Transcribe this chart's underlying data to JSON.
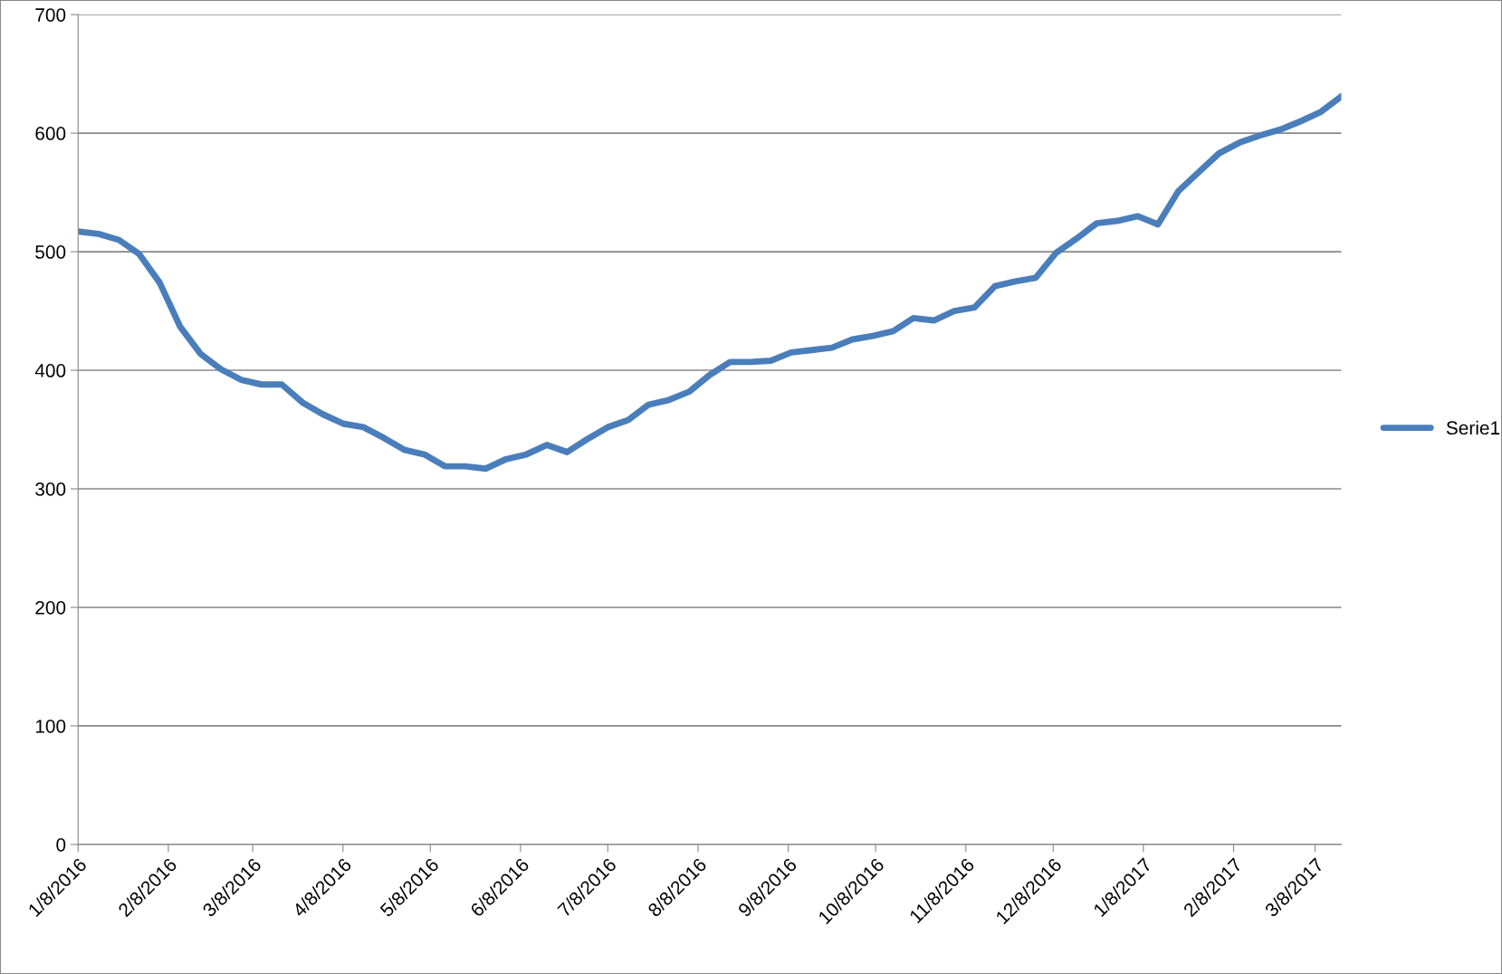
{
  "chart_data": {
    "type": "line",
    "x": [
      "2016-01-08",
      "2016-01-15",
      "2016-01-22",
      "2016-01-29",
      "2016-02-05",
      "2016-02-12",
      "2016-02-19",
      "2016-02-26",
      "2016-03-04",
      "2016-03-11",
      "2016-03-18",
      "2016-03-25",
      "2016-04-01",
      "2016-04-08",
      "2016-04-15",
      "2016-04-22",
      "2016-04-29",
      "2016-05-06",
      "2016-05-13",
      "2016-05-20",
      "2016-05-27",
      "2016-06-03",
      "2016-06-10",
      "2016-06-17",
      "2016-06-24",
      "2016-07-01",
      "2016-07-08",
      "2016-07-15",
      "2016-07-22",
      "2016-07-29",
      "2016-08-05",
      "2016-08-12",
      "2016-08-19",
      "2016-08-26",
      "2016-09-02",
      "2016-09-09",
      "2016-09-16",
      "2016-09-23",
      "2016-09-30",
      "2016-10-07",
      "2016-10-14",
      "2016-10-21",
      "2016-10-28",
      "2016-11-04",
      "2016-11-11",
      "2016-11-18",
      "2016-11-25",
      "2016-12-02",
      "2016-12-09",
      "2016-12-16",
      "2016-12-23",
      "2016-12-30",
      "2017-01-06",
      "2017-01-13",
      "2017-01-20",
      "2017-01-27",
      "2017-02-03",
      "2017-02-10",
      "2017-02-17",
      "2017-02-24",
      "2017-03-03",
      "2017-03-10",
      "2017-03-17"
    ],
    "series": [
      {
        "name": "Serie1",
        "color": "#4a7ebb",
        "values": [
          517,
          515,
          510,
          498,
          474,
          437,
          414,
          401,
          392,
          388,
          388,
          373,
          363,
          355,
          352,
          343,
          333,
          329,
          319,
          319,
          317,
          325,
          329,
          337,
          331,
          342,
          352,
          358,
          371,
          375,
          382,
          396,
          407,
          407,
          408,
          415,
          417,
          419,
          426,
          429,
          433,
          444,
          442,
          450,
          453,
          471,
          475,
          478,
          499,
          511,
          524,
          526,
          530,
          523,
          551,
          567,
          583,
          592,
          598,
          603,
          610,
          618,
          631
        ]
      }
    ],
    "xlim": [
      "2016-01-08",
      "2017-03-17"
    ],
    "xticks": [
      {
        "value": "2016-01-08",
        "label": "1/8/2016"
      },
      {
        "value": "2016-02-08",
        "label": "2/8/2016"
      },
      {
        "value": "2016-03-08",
        "label": "3/8/2016"
      },
      {
        "value": "2016-04-08",
        "label": "4/8/2016"
      },
      {
        "value": "2016-05-08",
        "label": "5/8/2016"
      },
      {
        "value": "2016-06-08",
        "label": "6/8/2016"
      },
      {
        "value": "2016-07-08",
        "label": "7/8/2016"
      },
      {
        "value": "2016-08-08",
        "label": "8/8/2016"
      },
      {
        "value": "2016-09-08",
        "label": "9/8/2016"
      },
      {
        "value": "2016-10-08",
        "label": "10/8/2016"
      },
      {
        "value": "2016-11-08",
        "label": "11/8/2016"
      },
      {
        "value": "2016-12-08",
        "label": "12/8/2016"
      },
      {
        "value": "2017-01-08",
        "label": "1/8/2017"
      },
      {
        "value": "2017-02-08",
        "label": "2/8/2017"
      },
      {
        "value": "2017-03-08",
        "label": "3/8/2017"
      }
    ],
    "ylim": [
      0,
      700
    ],
    "yticks": [
      0,
      100,
      200,
      300,
      400,
      500,
      600,
      700
    ],
    "grid": "y",
    "legend": "right",
    "marker": "none",
    "line_style": "solid"
  }
}
